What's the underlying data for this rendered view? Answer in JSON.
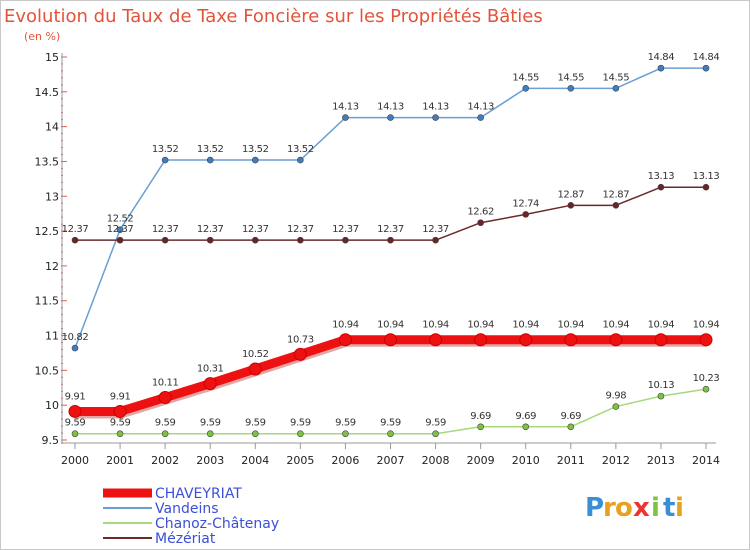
{
  "chart_data": {
    "type": "line",
    "title": "Evolution du Taux de Taxe Foncière sur les Propriétés Bâties",
    "subtitle": "(en %)",
    "xlabel": "",
    "ylabel": "",
    "x": [
      "2000",
      "2001",
      "2002",
      "2003",
      "2004",
      "2005",
      "2006",
      "2007",
      "2008",
      "2009",
      "2010",
      "2011",
      "2012",
      "2013",
      "2014"
    ],
    "ylim": [
      9.5,
      15
    ],
    "yticks": [
      "9.5",
      "10",
      "10.5",
      "11",
      "11.5",
      "12",
      "12.5",
      "13",
      "13.5",
      "14",
      "14.5",
      "15"
    ],
    "legend_position": "bottom-left",
    "series": [
      {
        "name": "Vandeins",
        "color": "#6a9fd4",
        "marker": "#3e7dc0",
        "values": [
          10.82,
          12.52,
          13.52,
          13.52,
          13.52,
          13.52,
          14.13,
          14.13,
          14.13,
          14.13,
          14.55,
          14.55,
          14.55,
          14.84,
          14.84
        ],
        "labels": [
          "10.82",
          "12.52",
          "13.52",
          "13.52",
          "13.52",
          "13.52",
          "14.13",
          "14.13",
          "14.13",
          "14.13",
          "14.55",
          "14.55",
          "14.55",
          "14.84",
          "14.84"
        ]
      },
      {
        "name": "Mézériat",
        "color": "#6b2a2a",
        "marker": "#6b2323",
        "values": [
          12.37,
          12.37,
          12.37,
          12.37,
          12.37,
          12.37,
          12.37,
          12.37,
          12.37,
          12.62,
          12.74,
          12.87,
          12.87,
          13.13,
          13.13
        ],
        "labels": [
          "12.37",
          "12.37",
          "12.37",
          "12.37",
          "12.37",
          "12.37",
          "12.37",
          "12.37",
          "12.37",
          "12.62",
          "12.74",
          "12.87",
          "12.87",
          "13.13",
          "13.13"
        ]
      },
      {
        "name": "Chanoz-Châtenay",
        "color": "#a6d97a",
        "marker": "#7cc440",
        "values": [
          9.59,
          9.59,
          9.59,
          9.59,
          9.59,
          9.59,
          9.59,
          9.59,
          9.59,
          9.69,
          9.69,
          9.69,
          9.98,
          10.13,
          10.23
        ],
        "labels": [
          "9.59",
          "9.59",
          "9.59",
          "9.59",
          "9.59",
          "9.59",
          "9.59",
          "9.59",
          "9.59",
          "9.69",
          "9.69",
          "9.69",
          "9.98",
          "10.13",
          "10.23"
        ]
      },
      {
        "name": "CHAVEYRIAT",
        "color": "#ee1111",
        "marker": "#ee1111",
        "values": [
          9.91,
          9.91,
          10.11,
          10.31,
          10.52,
          10.73,
          10.94,
          10.94,
          10.94,
          10.94,
          10.94,
          10.94,
          10.94,
          10.94,
          10.94
        ],
        "labels": [
          "9.91",
          "9.91",
          "10.11",
          "10.31",
          "10.52",
          "10.73",
          "10.94",
          "10.94",
          "10.94",
          "10.94",
          "10.94",
          "10.94",
          "10.94",
          "10.94",
          "10.94"
        ]
      }
    ],
    "legend_order": [
      "CHAVEYRIAT",
      "Vandeins",
      "Chanoz-Châtenay",
      "Mézériat"
    ]
  },
  "brand": {
    "letters": [
      "P",
      "r",
      "o",
      "x",
      "i",
      "t",
      "i"
    ],
    "colors": [
      "#3a8fd4",
      "#e8a020",
      "#e8a020",
      "#ee3333",
      "#7cc440",
      "#3a8fd4",
      "#e8a020"
    ]
  }
}
